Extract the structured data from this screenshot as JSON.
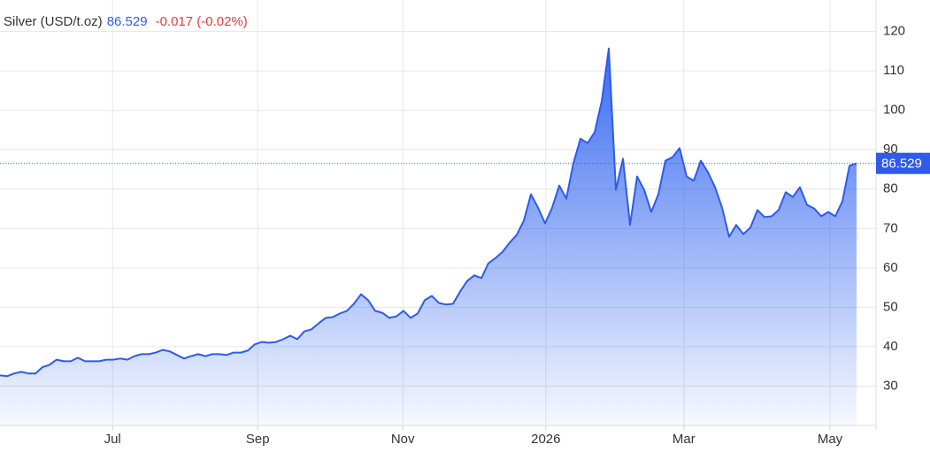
{
  "chart_data": {
    "type": "area",
    "title": "Silver (USD/t.oz)",
    "change": "-0.017 (-0.02%)",
    "color": "#2f5bea",
    "grid": true,
    "ylim": [
      20,
      128
    ],
    "yticks": [
      30,
      40,
      50,
      60,
      70,
      80,
      90,
      100,
      110,
      120
    ],
    "xlim": [
      0,
      123.75
    ],
    "xticks": [
      {
        "value": 15.9,
        "label": "Jul"
      },
      {
        "value": 36.4,
        "label": "Sep"
      },
      {
        "value": 56.9,
        "label": "Nov"
      },
      {
        "value": 77.1,
        "label": "2026"
      },
      {
        "value": 96.6,
        "label": "Mar"
      },
      {
        "value": 117.25,
        "label": "May"
      }
    ],
    "values": [
      32.7,
      32.5,
      33.2,
      33.6,
      33.2,
      33.2,
      34.8,
      35.4,
      36.7,
      36.3,
      36.3,
      37.2,
      36.3,
      36.3,
      36.3,
      36.7,
      36.7,
      37.0,
      36.7,
      37.6,
      38.1,
      38.1,
      38.5,
      39.2,
      38.8,
      37.9,
      37.0,
      37.6,
      38.1,
      37.6,
      38.1,
      38.1,
      37.9,
      38.5,
      38.5,
      39.0,
      40.6,
      41.2,
      41.0,
      41.2,
      41.9,
      42.8,
      41.9,
      43.9,
      44.4,
      45.9,
      47.3,
      47.5,
      48.4,
      49.1,
      50.9,
      53.3,
      51.8,
      49.1,
      48.6,
      47.3,
      47.7,
      49.1,
      47.3,
      48.4,
      51.8,
      52.9,
      51.1,
      50.7,
      50.9,
      54.0,
      56.7,
      58.1,
      57.4,
      61.2,
      62.5,
      64.1,
      66.4,
      68.4,
      72.0,
      78.7,
      75.3,
      71.3,
      75.3,
      80.9,
      77.6,
      86.6,
      92.8,
      91.7,
      94.4,
      102.3,
      115.7,
      79.8,
      87.7,
      70.9,
      83.2,
      79.8,
      74.2,
      78.7,
      87.2,
      88.1,
      90.4,
      83.2,
      82.1,
      87.2,
      84.3,
      80.5,
      75.3,
      67.9,
      70.9,
      68.6,
      70.2,
      74.7,
      72.9,
      73.1,
      74.7,
      79.2,
      78.0,
      80.5,
      76.0,
      75.1,
      73.1,
      74.2,
      73.1,
      76.9,
      85.9,
      86.529
    ]
  }
}
